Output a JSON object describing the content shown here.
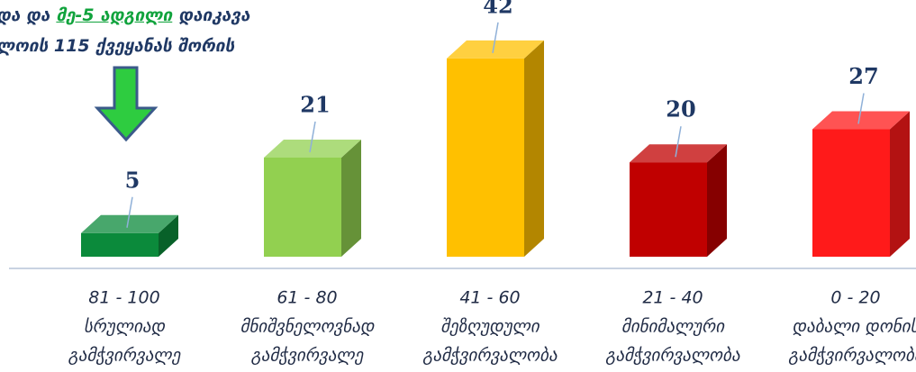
{
  "chart_data": {
    "type": "bar3d",
    "annotation": {
      "line1": [
        "და და",
        "მე-5 ადგილი",
        "დაიკავა"
      ],
      "line2": "ლოის 115 ქვეყანას შორის"
    },
    "categories": [
      [
        "81 - 100",
        "სრულიად",
        "გამჭვირვალე"
      ],
      [
        "61 - 80",
        "მნიშვნელოვნად",
        "გამჭვირვალე"
      ],
      [
        "41 - 60",
        "შეზღუდული",
        "გამჭვირვალობა"
      ],
      [
        "21 - 40",
        "მინიმალური",
        "გამჭვირვალობა"
      ],
      [
        "0 - 20",
        "დაბალი დონის",
        "გამჭვირვალობა"
      ]
    ],
    "values": [
      5,
      21,
      42,
      20,
      27
    ],
    "colors": [
      "#0b8a3b",
      "#92d050",
      "#ffc000",
      "#c00000",
      "#ff1a1a"
    ]
  }
}
